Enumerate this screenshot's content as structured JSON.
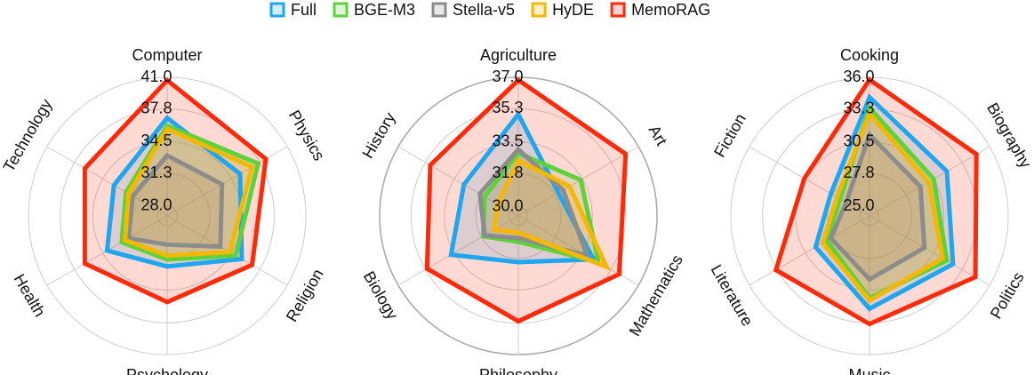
{
  "chart_data": [
    {
      "type": "radar",
      "categories": [
        "Computer",
        "Physics",
        "Religion",
        "Psychology",
        "Health",
        "Technology"
      ],
      "ylim": [
        27,
        41
      ],
      "yticks": [
        {
          "value": 28.0,
          "label": "28.0"
        },
        31.3,
        34.5,
        37.8,
        {
          "value": 41.0,
          "label": "41.0"
        }
      ],
      "series": [
        {
          "name": "Full",
          "color": "#1ea7f0",
          "values": [
            36.9,
            35.5,
            35.7,
            32.1,
            34.0,
            33.2
          ]
        },
        {
          "name": "BGE-M3",
          "color": "#5dd23b",
          "values": [
            36.1,
            37.6,
            35.0,
            31.4,
            32.3,
            31.8
          ]
        },
        {
          "name": "Stella-v5",
          "color": "#8c8c8c",
          "values": [
            33.1,
            33.4,
            33.2,
            29.9,
            31.5,
            31.0
          ]
        },
        {
          "name": "HyDE",
          "color": "#f5b800",
          "values": [
            35.8,
            36.9,
            34.3,
            31.0,
            31.9,
            31.5
          ]
        },
        {
          "name": "MemoRAG",
          "color": "#ff2a0a",
          "values": [
            40.7,
            38.5,
            36.9,
            35.7,
            36.6,
            36.6
          ]
        }
      ]
    },
    {
      "type": "radar",
      "categories": [
        "Agriculture",
        "Art",
        "Mathematics",
        "Philosophy",
        "Biology",
        "History"
      ],
      "ylim": [
        29.5,
        37
      ],
      "yticks": [
        {
          "value": 30.0,
          "label": "30.0"
        },
        31.8,
        33.5,
        35.3,
        {
          "value": 37.0,
          "label": "37.0"
        }
      ],
      "series": [
        {
          "color": "#1ea7f0",
          "values": [
            35.0,
            32.0,
            34.2,
            32.0,
            33.7,
            32.9
          ]
        },
        {
          "color": "#5dd23b",
          "values": [
            32.9,
            33.4,
            34.5,
            30.9,
            31.7,
            31.6
          ]
        },
        {
          "color": "#8c8c8c",
          "values": [
            33.1,
            32.3,
            33.8,
            30.7,
            31.6,
            31.9
          ]
        },
        {
          "color": "#f5b800",
          "values": [
            32.5,
            32.7,
            35.0,
            30.4,
            31.0,
            30.8
          ]
        },
        {
          "color": "#ff2a0a",
          "values": [
            36.85,
            36.2,
            35.8,
            35.2,
            35.2,
            35.0
          ]
        }
      ]
    },
    {
      "type": "radar",
      "categories": [
        "Cooking",
        "Biography",
        "Politics",
        "Music",
        "Literature",
        "Fiction"
      ],
      "ylim": [
        24.2,
        36
      ],
      "yticks": [
        {
          "value": 25.0,
          "label": "25.0"
        },
        27.8,
        30.5,
        33.3,
        {
          "value": 36.0,
          "label": "36.0"
        }
      ],
      "series": [
        {
          "color": "#1ea7f0",
          "values": [
            34.3,
            31.8,
            32.4,
            32.1,
            29.5,
            28.0
          ]
        },
        {
          "color": "#5dd23b",
          "values": [
            33.4,
            30.5,
            31.8,
            31.2,
            28.4,
            27.1
          ]
        },
        {
          "color": "#8c8c8c",
          "values": [
            31.1,
            29.2,
            29.6,
            29.6,
            28.0,
            26.5
          ]
        },
        {
          "color": "#f5b800",
          "values": [
            32.9,
            30.0,
            31.4,
            31.4,
            28.8,
            27.4
          ]
        },
        {
          "color": "#ff2a0a",
          "values": [
            35.8,
            34.7,
            34.6,
            33.4,
            33.4,
            30.6
          ]
        }
      ]
    }
  ]
}
